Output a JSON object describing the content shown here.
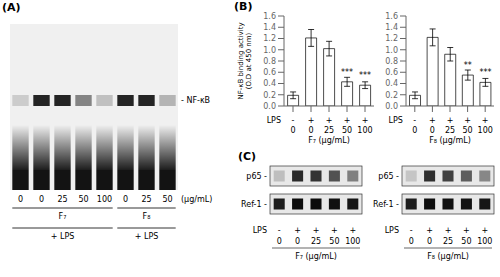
{
  "chart_data": [
    {
      "type": "gel",
      "title": "(A)",
      "categories": [
        "0",
        "0",
        "25",
        "50",
        "100",
        "0",
        "25",
        "50"
      ],
      "series": [
        {
          "name": "- NF-κB",
          "values": [
            0.15,
            0.85,
            0.85,
            0.45,
            0.2,
            0.85,
            0.85,
            0.25
          ]
        }
      ],
      "annotations": [
        {
          "text": "(μg/mL)"
        },
        {
          "text": "F₇",
          "from": 0,
          "to": 4
        },
        {
          "text": "F₈",
          "from": 5,
          "to": 7
        },
        {
          "text": "+ LPS",
          "from": 0,
          "to": 4
        },
        {
          "text": "+ LPS",
          "from": 5,
          "to": 7
        }
      ]
    },
    {
      "type": "bar",
      "title": "(B)",
      "categories": [
        [
          "-",
          "0"
        ],
        [
          "+",
          "0"
        ],
        [
          "+",
          "25"
        ],
        [
          "+",
          "50"
        ],
        [
          "+",
          "100"
        ]
      ],
      "values": [
        0.19,
        1.21,
        1.02,
        0.43,
        0.37
      ],
      "errors": [
        0.06,
        0.15,
        0.13,
        0.08,
        0.06
      ],
      "color": "#ffffff",
      "y_label": "NF-κB binding activity\n(O.D at 450 nm)",
      "x_label": "F₇ (μg/mL)",
      "ylim": [
        0,
        1.6
      ],
      "yticks": [
        {
          "value": 0,
          "label": "0.0"
        },
        0.2,
        0.4,
        0.6,
        0.8,
        {
          "value": 1,
          "label": "1.0"
        },
        1.2,
        1.4,
        1.6
      ],
      "annotations": [
        {
          "text": "LPS"
        },
        {
          "text": "***",
          "category": 3
        },
        {
          "text": "***",
          "category": 4
        }
      ]
    },
    {
      "type": "bar",
      "categories": [
        [
          "-",
          "0"
        ],
        [
          "+",
          "0"
        ],
        [
          "+",
          "25"
        ],
        [
          "+",
          "50"
        ],
        [
          "+",
          "100"
        ]
      ],
      "values": [
        0.19,
        1.22,
        0.92,
        0.55,
        0.42
      ],
      "errors": [
        0.06,
        0.15,
        0.12,
        0.09,
        0.07
      ],
      "color": "#ffffff",
      "x_label": "F₈ (μg/mL)",
      "ylim": [
        0,
        1.6
      ],
      "yticks": [
        {
          "value": 0,
          "label": "0.0"
        },
        0.2,
        0.4,
        0.6,
        0.8,
        {
          "value": 1,
          "label": "1.0"
        },
        1.2,
        1.4,
        1.6
      ],
      "annotations": [
        {
          "text": "LPS"
        },
        {
          "text": "**",
          "category": 3
        },
        {
          "text": "***",
          "category": 4
        }
      ]
    },
    {
      "type": "blot",
      "title": "(C)",
      "categories": [
        [
          "-",
          "0"
        ],
        [
          "+",
          "0"
        ],
        [
          "+",
          "25"
        ],
        [
          "+",
          "50"
        ],
        [
          "+",
          "100"
        ]
      ],
      "series": [
        {
          "name": "p65 -",
          "values": [
            0.18,
            0.82,
            0.78,
            0.65,
            0.45
          ]
        },
        {
          "name": "Ref-1 -",
          "values": [
            0.88,
            0.95,
            0.95,
            0.93,
            0.91
          ]
        }
      ],
      "x_label": "F₇ (μg/mL)",
      "annotations": [
        {
          "text": "LPS"
        }
      ]
    },
    {
      "type": "blot",
      "categories": [
        [
          "-",
          "0"
        ],
        [
          "+",
          "0"
        ],
        [
          "+",
          "25"
        ],
        [
          "+",
          "50"
        ],
        [
          "+",
          "100"
        ]
      ],
      "series": [
        {
          "name": "p65 -",
          "values": [
            0.15,
            0.8,
            0.72,
            0.6,
            0.42
          ]
        },
        {
          "name": "Ref-1 -",
          "values": [
            0.88,
            0.94,
            0.93,
            0.92,
            0.9
          ]
        }
      ],
      "x_label": "F₈ (μg/mL)",
      "annotations": [
        {
          "text": "LPS"
        }
      ]
    }
  ]
}
